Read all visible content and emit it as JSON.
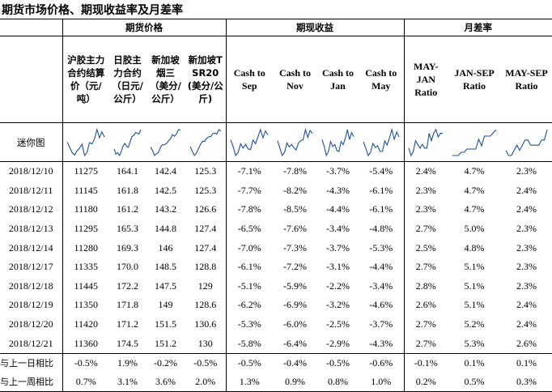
{
  "title": "期货市场价格、期现收益率及月差率",
  "groups": {
    "futures": "期货价格",
    "basis": "期现收益",
    "spread": "月差率"
  },
  "columns": [
    "沪胶主力合约结算价（元/吨）",
    "日胶主力合约（日元/公斤）",
    "新加坡烟三（美分/公斤）",
    "新加坡TSR20(美分/公斤)",
    "Cash to Sep",
    "Cash to Nov",
    "Cash to Jan",
    "Cash to May",
    "MAY-JAN Ratio",
    "JAN-SEP Ratio",
    "MAY-SEP Ratio"
  ],
  "sparkline_label": "迷你图",
  "rows": [
    {
      "date": "2018/12/10",
      "values": [
        "11275",
        "164.1",
        "142.4",
        "125.3",
        "-7.1%",
        "-7.8%",
        "-3.7%",
        "-5.4%",
        "2.4%",
        "4.7%",
        "2.3%"
      ]
    },
    {
      "date": "2018/12/11",
      "values": [
        "11145",
        "161.8",
        "142.5",
        "125.3",
        "-7.7%",
        "-8.2%",
        "-4.3%",
        "-6.1%",
        "2.3%",
        "4.7%",
        "2.4%"
      ]
    },
    {
      "date": "2018/12/12",
      "values": [
        "11180",
        "161.2",
        "143.2",
        "126.6",
        "-7.8%",
        "-8.5%",
        "-4.4%",
        "-6.1%",
        "2.3%",
        "4.7%",
        "2.4%"
      ]
    },
    {
      "date": "2018/12/13",
      "values": [
        "11295",
        "165.3",
        "144.8",
        "127.4",
        "-6.5%",
        "-7.6%",
        "-3.4%",
        "-4.8%",
        "2.7%",
        "5.0%",
        "2.3%"
      ]
    },
    {
      "date": "2018/12/14",
      "values": [
        "11280",
        "169.3",
        "146",
        "127.4",
        "-7.0%",
        "-7.3%",
        "-3.7%",
        "-5.3%",
        "2.5%",
        "4.8%",
        "2.3%"
      ]
    },
    {
      "date": "2018/12/17",
      "values": [
        "11335",
        "170.0",
        "148.5",
        "128.8",
        "-6.1%",
        "-7.2%",
        "-3.1%",
        "-4.4%",
        "2.7%",
        "5.1%",
        "2.3%"
      ]
    },
    {
      "date": "2018/12/18",
      "values": [
        "11445",
        "172.2",
        "147.5",
        "129",
        "-5.1%",
        "-5.9%",
        "-2.2%",
        "-3.4%",
        "2.8%",
        "5.1%",
        "2.3%"
      ]
    },
    {
      "date": "2018/12/19",
      "values": [
        "11350",
        "171.8",
        "149",
        "128.6",
        "-6.2%",
        "-6.9%",
        "-3.2%",
        "-4.6%",
        "2.6%",
        "5.1%",
        "2.4%"
      ]
    },
    {
      "date": "2018/12/20",
      "values": [
        "11420",
        "171.2",
        "151.5",
        "130.6",
        "-5.3%",
        "-6.0%",
        "-2.5%",
        "-3.7%",
        "2.7%",
        "5.2%",
        "2.4%"
      ]
    },
    {
      "date": "2018/12/21",
      "values": [
        "11360",
        "174.5",
        "151.2",
        "130",
        "-5.8%",
        "-6.4%",
        "-2.9%",
        "-4.3%",
        "2.7%",
        "5.3%",
        "2.6%"
      ]
    }
  ],
  "summary": [
    {
      "label": "与上一日相比",
      "values": [
        "-0.5%",
        "1.9%",
        "-0.2%",
        "-0.5%",
        "-0.5%",
        "-0.4%",
        "-0.5%",
        "-0.6%",
        "-0.1%",
        "0.1%",
        "0.1%"
      ]
    },
    {
      "label": "与上一周相比",
      "values": [
        "0.7%",
        "3.1%",
        "3.6%",
        "2.0%",
        "1.3%",
        "0.9%",
        "0.8%",
        "1.0%",
        "0.2%",
        "0.5%",
        "0.3%"
      ]
    }
  ],
  "sparklines": [
    [
      11300,
      11240,
      11180,
      11150,
      11200,
      11230,
      11275,
      11145,
      11180,
      11295,
      11280,
      11335,
      11445,
      11350,
      11420,
      11360
    ],
    [
      160,
      156,
      157,
      155,
      158,
      162,
      164.1,
      161.8,
      161.2,
      165.3,
      169.3,
      170.0,
      172.2,
      171.8,
      171.2,
      174.5
    ],
    [
      141,
      139,
      136,
      137,
      138,
      141,
      142.4,
      142.5,
      143.2,
      144.8,
      146,
      148.5,
      147.5,
      149,
      151.5,
      151.2
    ],
    [
      123,
      121,
      119,
      120,
      122,
      124,
      125.3,
      125.3,
      126.6,
      127.4,
      127.4,
      128.8,
      129,
      128.6,
      130.6,
      130
    ],
    [
      -6.5,
      -7.4,
      -8.6,
      -8.2,
      -7.0,
      -7.6,
      -7.1,
      -7.7,
      -7.8,
      -6.5,
      -7.0,
      -6.1,
      -5.1,
      -6.2,
      -5.3,
      -5.8
    ],
    [
      -7.3,
      -8.3,
      -9.2,
      -8.8,
      -7.6,
      -8.1,
      -7.8,
      -8.2,
      -8.5,
      -7.6,
      -7.3,
      -7.2,
      -5.9,
      -6.9,
      -6.0,
      -6.4
    ],
    [
      -3.2,
      -3.9,
      -4.8,
      -4.4,
      -3.4,
      -3.9,
      -3.7,
      -4.3,
      -4.4,
      -3.4,
      -3.7,
      -3.1,
      -2.2,
      -3.2,
      -2.5,
      -2.9
    ],
    [
      -4.9,
      -5.7,
      -6.6,
      -6.2,
      -5.1,
      -5.6,
      -5.4,
      -6.1,
      -6.1,
      -4.8,
      -5.3,
      -4.4,
      -3.4,
      -4.6,
      -3.7,
      -4.3
    ],
    [
      2.3,
      2.1,
      2.2,
      2.5,
      2.4,
      2.3,
      2.4,
      2.3,
      2.3,
      2.7,
      2.5,
      2.7,
      2.8,
      2.6,
      2.7,
      2.7
    ],
    [
      4.5,
      4.5,
      4.5,
      4.6,
      4.6,
      4.7,
      4.7,
      4.7,
      4.7,
      5.0,
      4.8,
      5.1,
      5.1,
      5.1,
      5.2,
      5.3
    ],
    [
      2.2,
      2.1,
      2.1,
      2.2,
      2.3,
      2.2,
      2.3,
      2.4,
      2.4,
      2.3,
      2.3,
      2.3,
      2.3,
      2.4,
      2.4,
      2.6
    ]
  ]
}
